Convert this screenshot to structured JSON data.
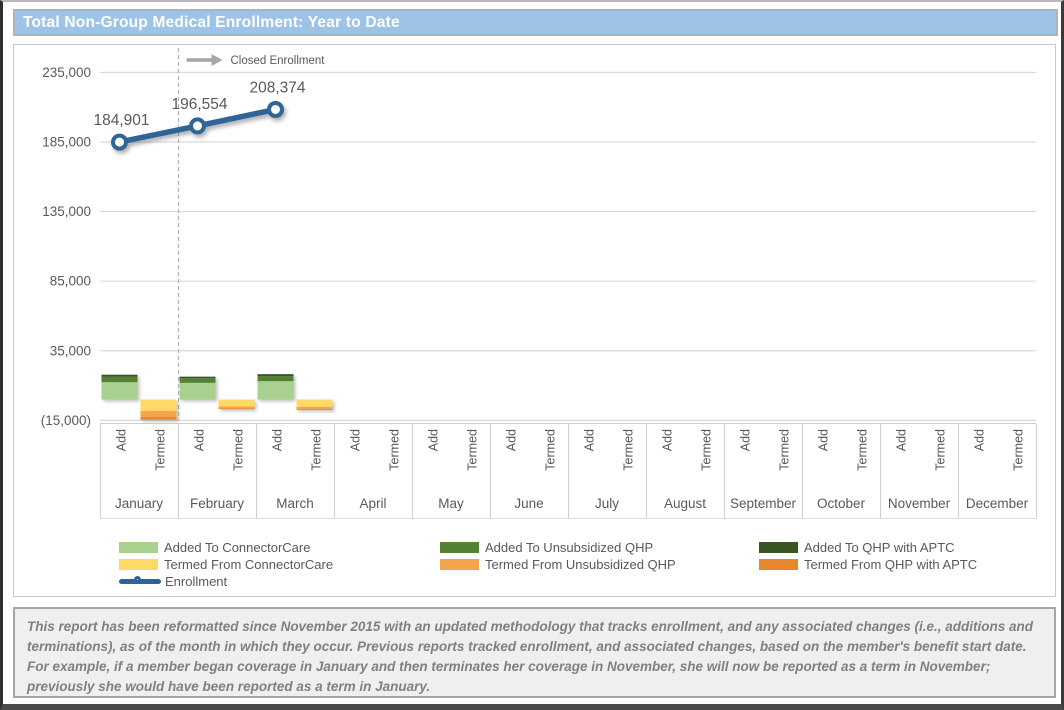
{
  "header": {
    "title": "Total Non-Group Medical Enrollment: Year to Date"
  },
  "colors": {
    "header_bg": "#9dc3e6",
    "enrollment_line": "#2e6496",
    "added_connectorcare": "#a9d08e",
    "added_unsubsidized_qhp": "#548235",
    "added_qhp_aptc": "#375623",
    "termed_connectorcare": "#ffd966",
    "termed_unsubsidized_qhp": "#f4a54c",
    "termed_qhp_aptc": "#e8862b",
    "gridline": "#d9d9d9",
    "axis_text": "#595959",
    "annotation_gray": "#a6a6a6",
    "footnote_bg": "#efefef",
    "footnote_text": "#808080"
  },
  "chart_data": {
    "type": "combo",
    "title": "Total Non-Group Medical Enrollment: Year to Date",
    "categories": [
      "January",
      "February",
      "March",
      "April",
      "May",
      "June",
      "July",
      "August",
      "September",
      "October",
      "November",
      "December"
    ],
    "sub_categories": [
      "Add",
      "Termed"
    ],
    "y_axis": {
      "min": -15000,
      "max": 235000,
      "step": 50000,
      "grid": true,
      "ticks": [
        {
          "value": 235000,
          "label": "235,000"
        },
        {
          "value": 185000,
          "label": "185,000"
        },
        {
          "value": 135000,
          "label": "135,000"
        },
        {
          "value": 85000,
          "label": "85,000"
        },
        {
          "value": 35000,
          "label": "35,000"
        },
        {
          "value": -15000,
          "label": "(15,000)"
        }
      ]
    },
    "bar_series": [
      {
        "name": "Added To ConnectorCare",
        "stack": "Add",
        "color": "#a9d08e",
        "values": [
          12500,
          12000,
          13200,
          0,
          0,
          0,
          0,
          0,
          0,
          0,
          0,
          0
        ]
      },
      {
        "name": "Added To Unsubsidized QHP",
        "stack": "Add",
        "color": "#548235",
        "values": [
          3800,
          3300,
          3600,
          0,
          0,
          0,
          0,
          0,
          0,
          0,
          0,
          0
        ]
      },
      {
        "name": "Added To QHP with APTC",
        "stack": "Add",
        "color": "#375623",
        "values": [
          1500,
          1100,
          1400,
          0,
          0,
          0,
          0,
          0,
          0,
          0,
          0,
          0
        ]
      },
      {
        "name": "Termed From ConnectorCare",
        "stack": "Termed",
        "color": "#ffd966",
        "values": [
          -8300,
          -5000,
          -5300,
          0,
          0,
          0,
          0,
          0,
          0,
          0,
          0,
          0
        ]
      },
      {
        "name": "Termed From Unsubsidized QHP",
        "stack": "Termed",
        "color": "#f4a54c",
        "values": [
          -4300,
          -1400,
          -1500,
          0,
          0,
          0,
          0,
          0,
          0,
          0,
          0,
          0
        ]
      },
      {
        "name": "Termed From QHP with APTC",
        "stack": "Termed",
        "color": "#e8862b",
        "values": [
          -1900,
          -500,
          -600,
          0,
          0,
          0,
          0,
          0,
          0,
          0,
          0,
          0
        ]
      }
    ],
    "line_series": {
      "name": "Enrollment",
      "color": "#2e6496",
      "values": [
        184901,
        196554,
        208374,
        null,
        null,
        null,
        null,
        null,
        null,
        null,
        null,
        null
      ],
      "labels": [
        "184,901",
        "196,554",
        "208,374"
      ]
    },
    "annotation": {
      "text": "Closed Enrollment",
      "divider_after_category": "January"
    },
    "legend_position": "bottom"
  },
  "legend": {
    "columns": [
      [
        {
          "label": "Added To ConnectorCare",
          "swatch": "rect",
          "color": "#a9d08e"
        },
        {
          "label": "Termed From ConnectorCare",
          "swatch": "rect",
          "color": "#ffd966"
        },
        {
          "label": "Enrollment",
          "swatch": "line",
          "color": "#2e6496"
        }
      ],
      [
        {
          "label": "Added To Unsubsidized QHP",
          "swatch": "rect",
          "color": "#548235"
        },
        {
          "label": "Termed From Unsubsidized QHP",
          "swatch": "rect",
          "color": "#f4a54c"
        }
      ],
      [
        {
          "label": "Added To QHP with APTC",
          "swatch": "rect",
          "color": "#375623"
        },
        {
          "label": "Termed From QHP with APTC",
          "swatch": "rect",
          "color": "#e8862b"
        }
      ]
    ]
  },
  "footnote": {
    "text": "This report has been reformatted since November 2015 with an updated methodology that tracks enrollment, and any associated changes (i.e., additions and terminations), as of the month in which they occur.  Previous reports tracked enrollment, and associated changes, based on the member's benefit start date.  For example, if a member began coverage in January and then terminates her coverage in November, she will now be reported as a term in November; previously she would have been reported as a term in January."
  }
}
